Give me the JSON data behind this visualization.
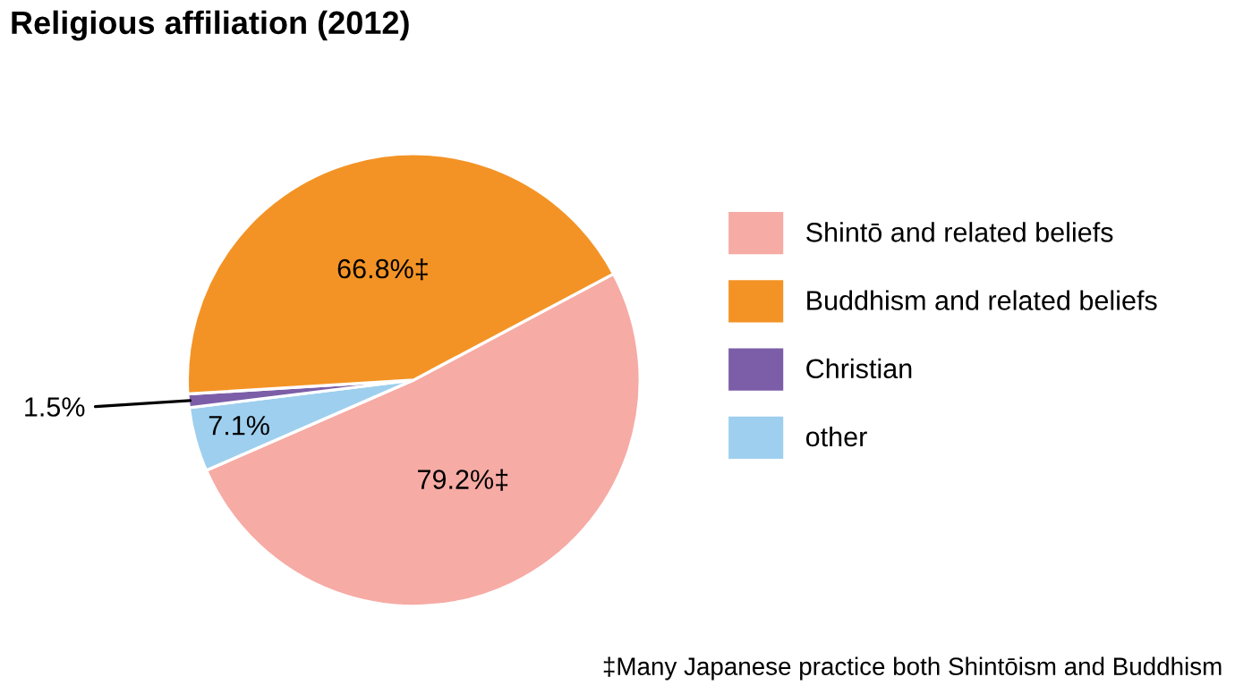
{
  "chart_data": {
    "type": "pie",
    "title": "Religious affiliation (2012)",
    "categories": [
      "Shintō and related beliefs",
      "Buddhism and related beliefs",
      "Christian",
      "other"
    ],
    "values": [
      79.2,
      66.8,
      1.5,
      7.1
    ],
    "colors": [
      "#f6aba4",
      "#f39325",
      "#7c5ea8",
      "#9ecfee"
    ],
    "value_labels": [
      "79.2%‡",
      "66.8%‡",
      "1.5%",
      "7.1%"
    ],
    "legend": "right",
    "annotations": [
      "‡Many Japanese practice both Shintōism and Buddhism"
    ]
  }
}
